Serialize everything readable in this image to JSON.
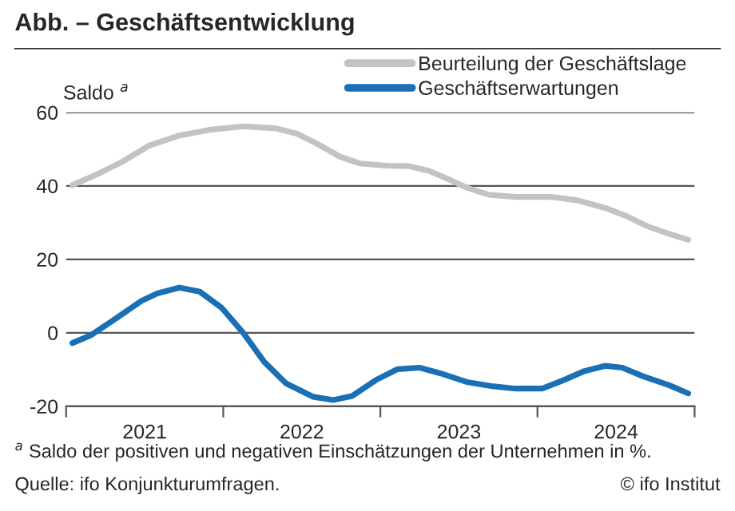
{
  "chart_data": {
    "type": "line",
    "title": "Abb. – Geschäftsentwicklung",
    "ylabel": "Saldo $^{a}$",
    "series": [
      {
        "name": "Beurteilung der Geschäftslage",
        "color": "#c3c3c3",
        "x": [
          2021.04,
          2021.19,
          2021.35,
          2021.53,
          2021.72,
          2021.92,
          2022.13,
          2022.33,
          2022.47,
          2022.6,
          2022.74,
          2022.87,
          2023.04,
          2023.18,
          2023.31,
          2023.45,
          2023.55,
          2023.69,
          2023.86,
          2024.09,
          2024.26,
          2024.43,
          2024.57,
          2024.7,
          2024.84,
          2024.96
        ],
        "values": [
          40.2,
          43,
          46.4,
          51,
          53.7,
          55.3,
          56.2,
          55.7,
          54.2,
          51.4,
          48,
          46.1,
          45.5,
          45.4,
          44.1,
          41.5,
          39.5,
          37.6,
          37,
          37,
          36,
          34,
          31.7,
          29,
          26.9,
          25.3
        ]
      },
      {
        "name": "Geschäftserwartungen",
        "color": "#1a6fb5",
        "x": [
          2021.04,
          2021.16,
          2021.31,
          2021.48,
          2021.58,
          2021.72,
          2021.85,
          2021.99,
          2022.13,
          2022.26,
          2022.4,
          2022.57,
          2022.7,
          2022.82,
          2022.97,
          2023.11,
          2023.25,
          2023.38,
          2023.55,
          2023.72,
          2023.86,
          2024.03,
          2024.16,
          2024.3,
          2024.43,
          2024.54,
          2024.67,
          2024.84,
          2024.96
        ],
        "values": [
          -2.8,
          -0.6,
          3.7,
          8.7,
          10.7,
          12.3,
          11.2,
          6.8,
          -0.2,
          -7.9,
          -13.8,
          -17.4,
          -18.3,
          -17.2,
          -12.9,
          -9.9,
          -9.5,
          -11,
          -13.4,
          -14.6,
          -15.2,
          -15.2,
          -13,
          -10.4,
          -9,
          -9.5,
          -11.8,
          -14.3,
          -16.5
        ]
      }
    ],
    "xlim": [
      2021,
      2025
    ],
    "xticks": [
      {
        "value": 2021,
        "label": null
      },
      {
        "value": 2021.5,
        "label": "2021"
      },
      {
        "value": 2022,
        "label": null
      },
      {
        "value": 2022.5,
        "label": "2022"
      },
      {
        "value": 2023,
        "label": null
      },
      {
        "value": 2023.5,
        "label": "2023"
      },
      {
        "value": 2024,
        "label": null
      },
      {
        "value": 2024.5,
        "label": "2024"
      },
      {
        "value": 2025,
        "label": null
      }
    ],
    "ylim": [
      -20,
      60
    ],
    "yticks": [
      -20,
      0,
      20,
      40,
      60
    ],
    "grid": "y",
    "legend": "top right",
    "line_style": "solid",
    "marker": "none",
    "annotations": [
      "$^{a}$ Saldo der positiven und negativen Einschätzungen der Unternehmen in %.",
      "Quelle: ifo Konjunkturumfragen.",
      "© ifo Institut"
    ]
  }
}
